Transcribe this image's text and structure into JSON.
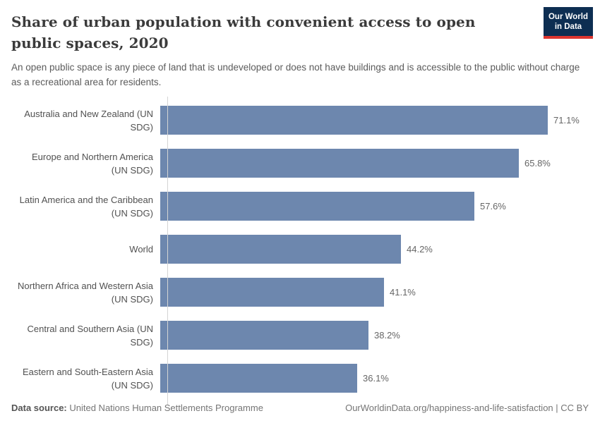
{
  "header": {
    "title": "Share of urban population with convenient access to open public spaces, 2020",
    "subtitle": "An open public space is any piece of land that is undeveloped or does not have buildings and is accessible to the public without charge as a recreational area for residents.",
    "logo": {
      "line1": "Our World",
      "line2": "in Data",
      "bg_color": "#0d2e52",
      "stripe_color": "#dc352f"
    }
  },
  "chart_data": {
    "type": "bar",
    "orientation": "horizontal",
    "title": "Share of urban population with convenient access to open public spaces, 2020",
    "categories": [
      "Australia and New Zealand (UN SDG)",
      "Europe and Northern America (UN SDG)",
      "Latin America and the Caribbean (UN SDG)",
      "World",
      "Northern Africa and Western Asia (UN SDG)",
      "Central and Southern Asia (UN SDG)",
      "Eastern and South-Eastern Asia (UN SDG)"
    ],
    "values": [
      71.1,
      65.8,
      57.6,
      44.2,
      41.1,
      38.2,
      36.1
    ],
    "value_labels": [
      "71.1%",
      "65.8%",
      "57.6%",
      "44.2%",
      "41.1%",
      "38.2%",
      "36.1%"
    ],
    "xlabel": "",
    "ylabel": "",
    "xlim": [
      0,
      75
    ],
    "grid": false,
    "legend": false,
    "bar_color": "#6d87ae",
    "axis_color": "#d4d4d4"
  },
  "footer": {
    "datasource_label": "Data source:",
    "datasource_value": " United Nations Human Settlements Programme",
    "link": "OurWorldinData.org/happiness-and-life-satisfaction",
    "separator": " | ",
    "license": "CC BY"
  }
}
